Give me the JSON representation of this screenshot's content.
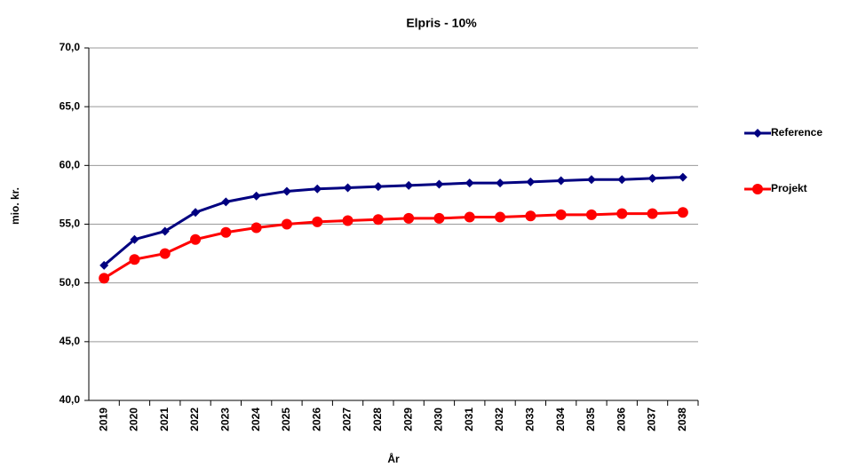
{
  "chart_data": {
    "type": "line",
    "title": "Elpris - 10%",
    "y_label": "mio. kr.",
    "x_label": "År",
    "categories": [
      "2019",
      "2020",
      "2021",
      "2022",
      "2023",
      "2024",
      "2025",
      "2026",
      "2027",
      "2028",
      "2029",
      "2030",
      "2031",
      "2032",
      "2033",
      "2034",
      "2035",
      "2036",
      "2037",
      "2038"
    ],
    "series": [
      {
        "name": "Reference",
        "color": "#000080",
        "marker": "diamond",
        "values": [
          51.5,
          53.7,
          54.4,
          56.0,
          56.9,
          57.4,
          57.8,
          58.0,
          58.1,
          58.2,
          58.3,
          58.4,
          58.5,
          58.5,
          58.6,
          58.7,
          58.8,
          58.8,
          58.9,
          59.0
        ]
      },
      {
        "name": "Projekt",
        "color": "#ff0000",
        "marker": "circle",
        "values": [
          50.4,
          52.0,
          52.5,
          53.7,
          54.3,
          54.7,
          55.0,
          55.2,
          55.3,
          55.4,
          55.5,
          55.5,
          55.6,
          55.6,
          55.7,
          55.8,
          55.8,
          55.9,
          55.9,
          56.0
        ]
      }
    ],
    "ylim": [
      40,
      70
    ],
    "yticks": [
      {
        "value": 40,
        "label": "40,0"
      },
      {
        "value": 45,
        "label": "45,0"
      },
      {
        "value": 50,
        "label": "50,0"
      },
      {
        "value": 55,
        "label": "55,0"
      },
      {
        "value": 60,
        "label": "60,0"
      },
      {
        "value": 65,
        "label": "65,0"
      },
      {
        "value": 70,
        "label": "70,0"
      }
    ],
    "grid": true,
    "legend": "right"
  }
}
